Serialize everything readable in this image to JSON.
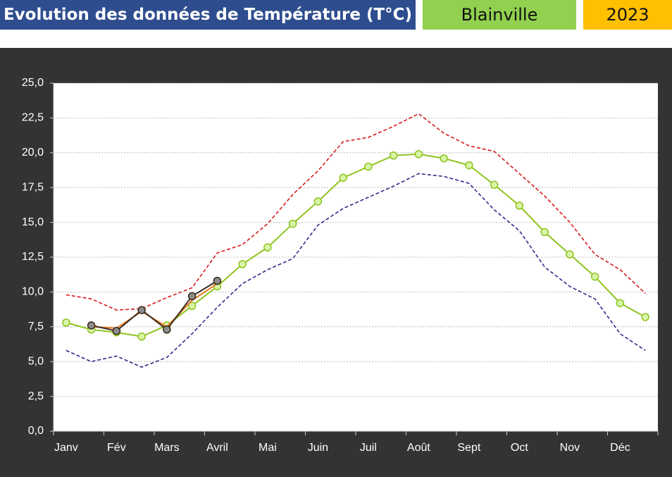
{
  "header": {
    "title": "Evolution des données de Température (T°C)",
    "place": "Blainville",
    "year": "2023"
  },
  "chart_data": {
    "type": "line",
    "categories": [
      "Janv",
      null,
      "Fév",
      null,
      "Mars",
      null,
      "Avril",
      null,
      "Mai",
      null,
      "Juin",
      null,
      "Juil",
      null,
      "Août",
      null,
      "Sept",
      null,
      "Oct",
      null,
      "Nov",
      null,
      "Déc",
      null
    ],
    "ylim": [
      0,
      25
    ],
    "yticks": [
      {
        "value": 0,
        "label": "0,0"
      },
      {
        "value": 2.5,
        "label": "2,5"
      },
      {
        "value": 5,
        "label": "5,0"
      },
      {
        "value": 7.5,
        "label": "7,5"
      },
      {
        "value": 10,
        "label": "10,0"
      },
      {
        "value": 12.5,
        "label": "12,5"
      },
      {
        "value": 15,
        "label": "15,0"
      },
      {
        "value": 17.5,
        "label": "17,5"
      },
      {
        "value": 20,
        "label": "20,0"
      },
      {
        "value": 22.5,
        "label": "22,5"
      },
      {
        "value": 25,
        "label": "25,0"
      }
    ],
    "grid": true,
    "series": [
      {
        "color": "#d7191c",
        "dashed": true,
        "marker": false,
        "values": [
          9.8,
          9.5,
          8.7,
          8.8,
          9.6,
          10.3,
          12.8,
          13.4,
          14.9,
          17.0,
          18.7,
          20.8,
          21.1,
          21.9,
          22.8,
          21.4,
          20.5,
          20.1,
          18.5,
          16.9,
          15.0,
          12.7,
          11.6,
          9.9
        ]
      },
      {
        "color": "#2b2b8c",
        "dashed": true,
        "marker": false,
        "values": [
          5.8,
          5.0,
          5.4,
          4.6,
          5.3,
          7.0,
          8.9,
          10.6,
          11.6,
          12.4,
          14.8,
          16.0,
          16.8,
          17.6,
          18.5,
          18.3,
          17.8,
          15.9,
          14.4,
          11.8,
          10.4,
          9.5,
          7.0,
          5.8
        ]
      },
      {
        "color": "#8fc31f",
        "dashed": false,
        "marker": true,
        "marker_fill": "#d8f5a8",
        "values": [
          7.8,
          7.3,
          7.1,
          6.8,
          7.6,
          9.0,
          10.4,
          12.0,
          13.2,
          14.9,
          16.5,
          18.2,
          19.0,
          19.8,
          19.9,
          19.6,
          19.1,
          17.7,
          16.2,
          14.3,
          12.7,
          11.1,
          9.2,
          8.2
        ]
      },
      {
        "color": "#e87722",
        "dashed": false,
        "marker": false,
        "values": [
          null,
          7.5,
          7.4,
          8.6,
          7.5,
          9.4,
          10.6,
          null,
          null,
          null,
          null,
          null,
          null,
          null,
          null,
          null,
          null,
          null,
          null,
          null,
          null,
          null,
          null,
          null
        ]
      },
      {
        "color": "#3a2a1a",
        "dashed": false,
        "marker": true,
        "marker_fill": "#8c8c8c",
        "values": [
          null,
          7.6,
          7.2,
          8.7,
          7.3,
          9.7,
          10.8,
          null,
          null,
          null,
          null,
          null,
          null,
          null,
          null,
          null,
          null,
          null,
          null,
          null,
          null,
          null,
          null,
          null
        ]
      }
    ]
  }
}
